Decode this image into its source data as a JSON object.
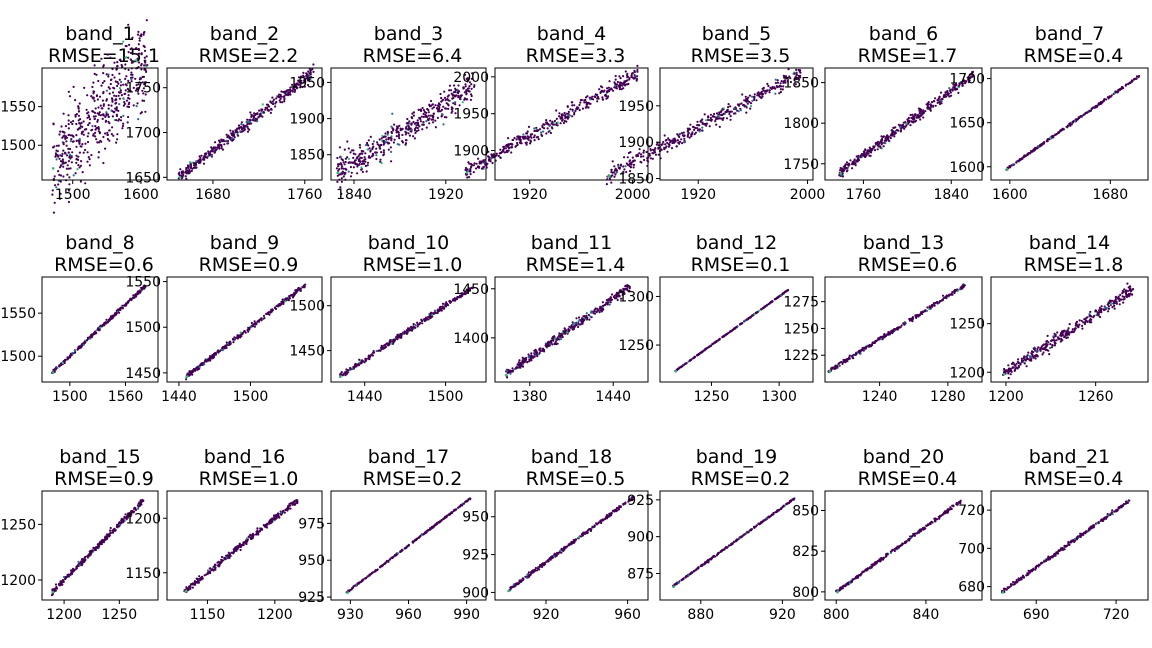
{
  "colors": {
    "point_main": "#440154",
    "point_mid": "#31688e",
    "point_hi": "#35b779",
    "point_top": "#fde725",
    "frame": "#000000"
  },
  "chart_data": [
    {
      "type": "scatter",
      "title": "band_1",
      "subtitle": "RMSE=15.1",
      "xlim": [
        1455,
        1625
      ],
      "ylim": [
        1455,
        1600
      ],
      "xticks": [
        1500,
        1600
      ],
      "yticks": [
        1500,
        1550
      ],
      "range": [
        1470,
        1610
      ],
      "spread": 28,
      "n": 520
    },
    {
      "type": "scatter",
      "title": "band_2",
      "subtitle": "RMSE=2.2",
      "xlim": [
        1640,
        1775
      ],
      "ylim": [
        1647,
        1772
      ],
      "xticks": [
        1680,
        1760
      ],
      "yticks": [
        1650,
        1700,
        1750
      ],
      "range": [
        1650,
        1768
      ],
      "spread": 3.5,
      "n": 420
    },
    {
      "type": "scatter",
      "title": "band_3",
      "subtitle": "RMSE=6.4",
      "xlim": [
        1820,
        1955
      ],
      "ylim": [
        1815,
        1970
      ],
      "xticks": [
        1840,
        1920
      ],
      "yticks": [
        1850,
        1900,
        1950
      ],
      "range": [
        1825,
        1945
      ],
      "spread": 10,
      "n": 460
    },
    {
      "type": "scatter",
      "title": "band_4",
      "subtitle": "RMSE=3.3",
      "xlim": [
        1893,
        2012
      ],
      "ylim": [
        1860,
        2012
      ],
      "xticks": [
        1920,
        2000
      ],
      "yticks": [
        1900,
        1950,
        2000
      ],
      "range": [
        1870,
        2005
      ],
      "spread": 5,
      "n": 420
    },
    {
      "type": "scatter",
      "title": "band_5",
      "subtitle": "RMSE=3.5",
      "xlim": [
        1892,
        2004
      ],
      "ylim": [
        1848,
        2002
      ],
      "xticks": [
        1920,
        2000
      ],
      "yticks": [
        1850,
        1900,
        1950
      ],
      "range": [
        1853,
        1995
      ],
      "spread": 5.5,
      "n": 420
    },
    {
      "type": "scatter",
      "title": "band_6",
      "subtitle": "RMSE=1.7",
      "xlim": [
        1725,
        1868
      ],
      "ylim": [
        1730,
        1868
      ],
      "xticks": [
        1760,
        1840
      ],
      "yticks": [
        1750,
        1800,
        1850
      ],
      "range": [
        1738,
        1860
      ],
      "spread": 3,
      "n": 400
    },
    {
      "type": "scatter",
      "title": "band_7",
      "subtitle": "RMSE=0.4",
      "xlim": [
        1585,
        1710
      ],
      "ylim": [
        1585,
        1712
      ],
      "xticks": [
        1600,
        1680
      ],
      "yticks": [
        1600,
        1650,
        1700
      ],
      "range": [
        1597,
        1703
      ],
      "spread": 0.6,
      "n": 300
    },
    {
      "type": "scatter",
      "title": "band_8",
      "subtitle": "RMSE=0.6",
      "xlim": [
        1470,
        1595
      ],
      "ylim": [
        1470,
        1592
      ],
      "xticks": [
        1500,
        1560
      ],
      "yticks": [
        1500,
        1550
      ],
      "range": [
        1481,
        1582
      ],
      "spread": 0.9,
      "n": 300
    },
    {
      "type": "scatter",
      "title": "band_9",
      "subtitle": "RMSE=0.9",
      "xlim": [
        1430,
        1560
      ],
      "ylim": [
        1440,
        1555
      ],
      "xticks": [
        1440,
        1500
      ],
      "yticks": [
        1450,
        1500,
        1550
      ],
      "range": [
        1446,
        1546
      ],
      "spread": 1.2,
      "n": 320
    },
    {
      "type": "scatter",
      "title": "band_10",
      "subtitle": "RMSE=1.0",
      "xlim": [
        1415,
        1530
      ],
      "ylim": [
        1415,
        1532
      ],
      "xticks": [
        1440,
        1500
      ],
      "yticks": [
        1450,
        1500
      ],
      "range": [
        1421,
        1520
      ],
      "spread": 1.4,
      "n": 320
    },
    {
      "type": "scatter",
      "title": "band_11",
      "subtitle": "RMSE=1.4",
      "xlim": [
        1355,
        1465
      ],
      "ylim": [
        1355,
        1462
      ],
      "xticks": [
        1380,
        1440
      ],
      "yticks": [
        1400,
        1450
      ],
      "range": [
        1362,
        1452
      ],
      "spread": 2,
      "n": 360
    },
    {
      "type": "scatter",
      "title": "band_12",
      "subtitle": "RMSE=0.1",
      "xlim": [
        1212,
        1325
      ],
      "ylim": [
        1212,
        1320
      ],
      "xticks": [
        1250,
        1300
      ],
      "yticks": [
        1250,
        1300
      ],
      "range": [
        1223,
        1307
      ],
      "spread": 0.2,
      "n": 260
    },
    {
      "type": "scatter",
      "title": "band_13",
      "subtitle": "RMSE=0.6",
      "xlim": [
        1208,
        1300
      ],
      "ylim": [
        1200,
        1298
      ],
      "xticks": [
        1240,
        1280
      ],
      "yticks": [
        1225,
        1250,
        1275
      ],
      "range": [
        1210,
        1290
      ],
      "spread": 0.9,
      "n": 300
    },
    {
      "type": "scatter",
      "title": "band_14",
      "subtitle": "RMSE=1.8",
      "xlim": [
        1190,
        1295
      ],
      "ylim": [
        1190,
        1298
      ],
      "xticks": [
        1200,
        1260
      ],
      "yticks": [
        1200,
        1250
      ],
      "range": [
        1198,
        1285
      ],
      "spread": 3,
      "n": 380
    },
    {
      "type": "scatter",
      "title": "band_15",
      "subtitle": "RMSE=0.9",
      "xlim": [
        1180,
        1285
      ],
      "ylim": [
        1182,
        1280
      ],
      "xticks": [
        1200,
        1250
      ],
      "yticks": [
        1200,
        1250
      ],
      "range": [
        1189,
        1272
      ],
      "spread": 1.2,
      "n": 320
    },
    {
      "type": "scatter",
      "title": "band_16",
      "subtitle": "RMSE=1.0",
      "xlim": [
        1120,
        1235
      ],
      "ylim": [
        1125,
        1225
      ],
      "xticks": [
        1150,
        1200
      ],
      "yticks": [
        1150,
        1200
      ],
      "range": [
        1133,
        1217
      ],
      "spread": 1.3,
      "n": 320
    },
    {
      "type": "scatter",
      "title": "band_17",
      "subtitle": "RMSE=0.2",
      "xlim": [
        920,
        1000
      ],
      "ylim": [
        923,
        997
      ],
      "xticks": [
        930,
        960,
        990
      ],
      "yticks": [
        925,
        950,
        975
      ],
      "range": [
        928,
        992
      ],
      "spread": 0.25,
      "n": 260
    },
    {
      "type": "scatter",
      "title": "band_18",
      "subtitle": "RMSE=0.5",
      "xlim": [
        895,
        970
      ],
      "ylim": [
        895,
        967
      ],
      "xticks": [
        920,
        960
      ],
      "yticks": [
        900,
        925,
        950
      ],
      "range": [
        901,
        963
      ],
      "spread": 0.6,
      "n": 280
    },
    {
      "type": "scatter",
      "title": "band_19",
      "subtitle": "RMSE=0.2",
      "xlim": [
        860,
        935
      ],
      "ylim": [
        857,
        931
      ],
      "xticks": [
        880,
        920
      ],
      "yticks": [
        875,
        900,
        925
      ],
      "range": [
        866,
        926
      ],
      "spread": 0.25,
      "n": 260
    },
    {
      "type": "scatter",
      "title": "band_20",
      "subtitle": "RMSE=0.4",
      "xlim": [
        795,
        865
      ],
      "ylim": [
        795,
        862
      ],
      "xticks": [
        800,
        840
      ],
      "yticks": [
        800,
        825,
        850
      ],
      "range": [
        800,
        856
      ],
      "spread": 0.5,
      "n": 280
    },
    {
      "type": "scatter",
      "title": "band_21",
      "subtitle": "RMSE=0.4",
      "xlim": [
        673,
        732
      ],
      "ylim": [
        673,
        730
      ],
      "xticks": [
        690,
        720
      ],
      "yticks": [
        680,
        700,
        720
      ],
      "range": [
        677,
        725
      ],
      "spread": 0.45,
      "n": 280
    }
  ]
}
